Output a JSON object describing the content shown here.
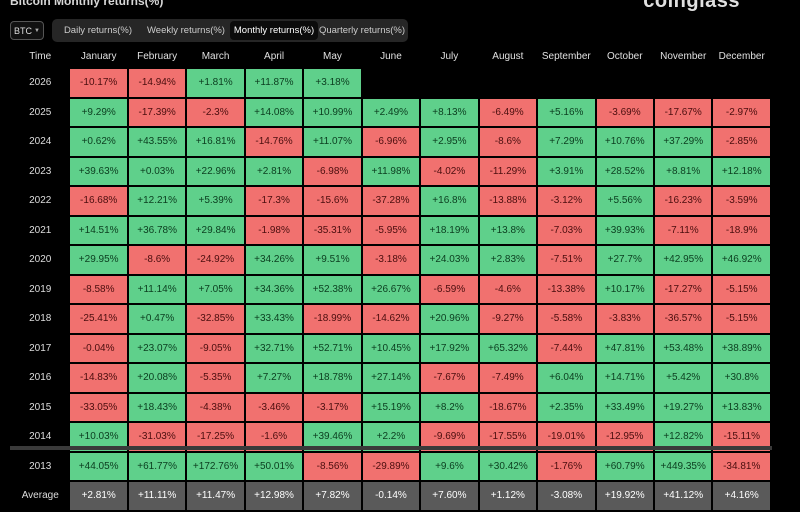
{
  "page_title": "Bitcoin Monthly returns(%)",
  "brand": "coinglass",
  "coin_selector": {
    "value": "BTC",
    "icon": "chevron-down-icon"
  },
  "tabs": [
    {
      "label": "Daily returns(%)",
      "active": false
    },
    {
      "label": "Weekly returns(%)",
      "active": false
    },
    {
      "label": "Monthly returns(%)",
      "active": true
    },
    {
      "label": "Quarterly returns(%)",
      "active": false
    }
  ],
  "table": {
    "corner_label": "Time",
    "columns": [
      "January",
      "February",
      "March",
      "April",
      "May",
      "June",
      "July",
      "August",
      "September",
      "October",
      "November",
      "December"
    ],
    "rows": [
      {
        "year": "2026",
        "values": [
          "-10.17%",
          "-14.94%",
          "+1.81%",
          "+11.87%",
          "+3.18%",
          "",
          "",
          "",
          "",
          "",
          "",
          ""
        ]
      },
      {
        "year": "2025",
        "values": [
          "+9.29%",
          "-17.39%",
          "-2.3%",
          "+14.08%",
          "+10.99%",
          "+2.49%",
          "+8.13%",
          "-6.49%",
          "+5.16%",
          "-3.69%",
          "-17.67%",
          "-2.97%"
        ]
      },
      {
        "year": "2024",
        "values": [
          "+0.62%",
          "+43.55%",
          "+16.81%",
          "-14.76%",
          "+11.07%",
          "-6.96%",
          "+2.95%",
          "-8.6%",
          "+7.29%",
          "+10.76%",
          "+37.29%",
          "-2.85%"
        ]
      },
      {
        "year": "2023",
        "values": [
          "+39.63%",
          "+0.03%",
          "+22.96%",
          "+2.81%",
          "-6.98%",
          "+11.98%",
          "-4.02%",
          "-11.29%",
          "+3.91%",
          "+28.52%",
          "+8.81%",
          "+12.18%"
        ]
      },
      {
        "year": "2022",
        "values": [
          "-16.68%",
          "+12.21%",
          "+5.39%",
          "-17.3%",
          "-15.6%",
          "-37.28%",
          "+16.8%",
          "-13.88%",
          "-3.12%",
          "+5.56%",
          "-16.23%",
          "-3.59%"
        ]
      },
      {
        "year": "2021",
        "values": [
          "+14.51%",
          "+36.78%",
          "+29.84%",
          "-1.98%",
          "-35.31%",
          "-5.95%",
          "+18.19%",
          "+13.8%",
          "-7.03%",
          "+39.93%",
          "-7.11%",
          "-18.9%"
        ]
      },
      {
        "year": "2020",
        "values": [
          "+29.95%",
          "-8.6%",
          "-24.92%",
          "+34.26%",
          "+9.51%",
          "-3.18%",
          "+24.03%",
          "+2.83%",
          "-7.51%",
          "+27.7%",
          "+42.95%",
          "+46.92%"
        ]
      },
      {
        "year": "2019",
        "values": [
          "-8.58%",
          "+11.14%",
          "+7.05%",
          "+34.36%",
          "+52.38%",
          "+26.67%",
          "-6.59%",
          "-4.6%",
          "-13.38%",
          "+10.17%",
          "-17.27%",
          "-5.15%"
        ]
      },
      {
        "year": "2018",
        "values": [
          "-25.41%",
          "+0.47%",
          "-32.85%",
          "+33.43%",
          "-18.99%",
          "-14.62%",
          "+20.96%",
          "-9.27%",
          "-5.58%",
          "-3.83%",
          "-36.57%",
          "-5.15%"
        ]
      },
      {
        "year": "2017",
        "values": [
          "-0.04%",
          "+23.07%",
          "-9.05%",
          "+32.71%",
          "+52.71%",
          "+10.45%",
          "+17.92%",
          "+65.32%",
          "-7.44%",
          "+47.81%",
          "+53.48%",
          "+38.89%"
        ]
      },
      {
        "year": "2016",
        "values": [
          "-14.83%",
          "+20.08%",
          "-5.35%",
          "+7.27%",
          "+18.78%",
          "+27.14%",
          "-7.67%",
          "-7.49%",
          "+6.04%",
          "+14.71%",
          "+5.42%",
          "+30.8%"
        ]
      },
      {
        "year": "2015",
        "values": [
          "-33.05%",
          "+18.43%",
          "-4.38%",
          "-3.46%",
          "-3.17%",
          "+15.19%",
          "+8.2%",
          "-18.67%",
          "+2.35%",
          "+33.49%",
          "+19.27%",
          "+13.83%"
        ]
      },
      {
        "year": "2014",
        "values": [
          "+10.03%",
          "-31.03%",
          "-17.25%",
          "-1.6%",
          "+39.46%",
          "+2.2%",
          "-9.69%",
          "-17.55%",
          "-19.01%",
          "-12.95%",
          "+12.82%",
          "-15.11%"
        ]
      },
      {
        "year": "2013",
        "values": [
          "+44.05%",
          "+61.77%",
          "+172.76%",
          "+50.01%",
          "-8.56%",
          "-29.89%",
          "+9.6%",
          "+30.42%",
          "-1.76%",
          "+60.79%",
          "+449.35%",
          "-34.81%"
        ]
      }
    ],
    "average": {
      "label": "Average",
      "values": [
        "+2.81%",
        "+11.11%",
        "+11.47%",
        "+12.98%",
        "+7.82%",
        "-0.14%",
        "+7.60%",
        "+1.12%",
        "-3.08%",
        "+19.92%",
        "+41.12%",
        "+4.16%"
      ]
    }
  },
  "colors": {
    "positive": "#5fd08b",
    "negative": "#f1716f",
    "average": "#5a5a5a",
    "background": "#000000"
  }
}
